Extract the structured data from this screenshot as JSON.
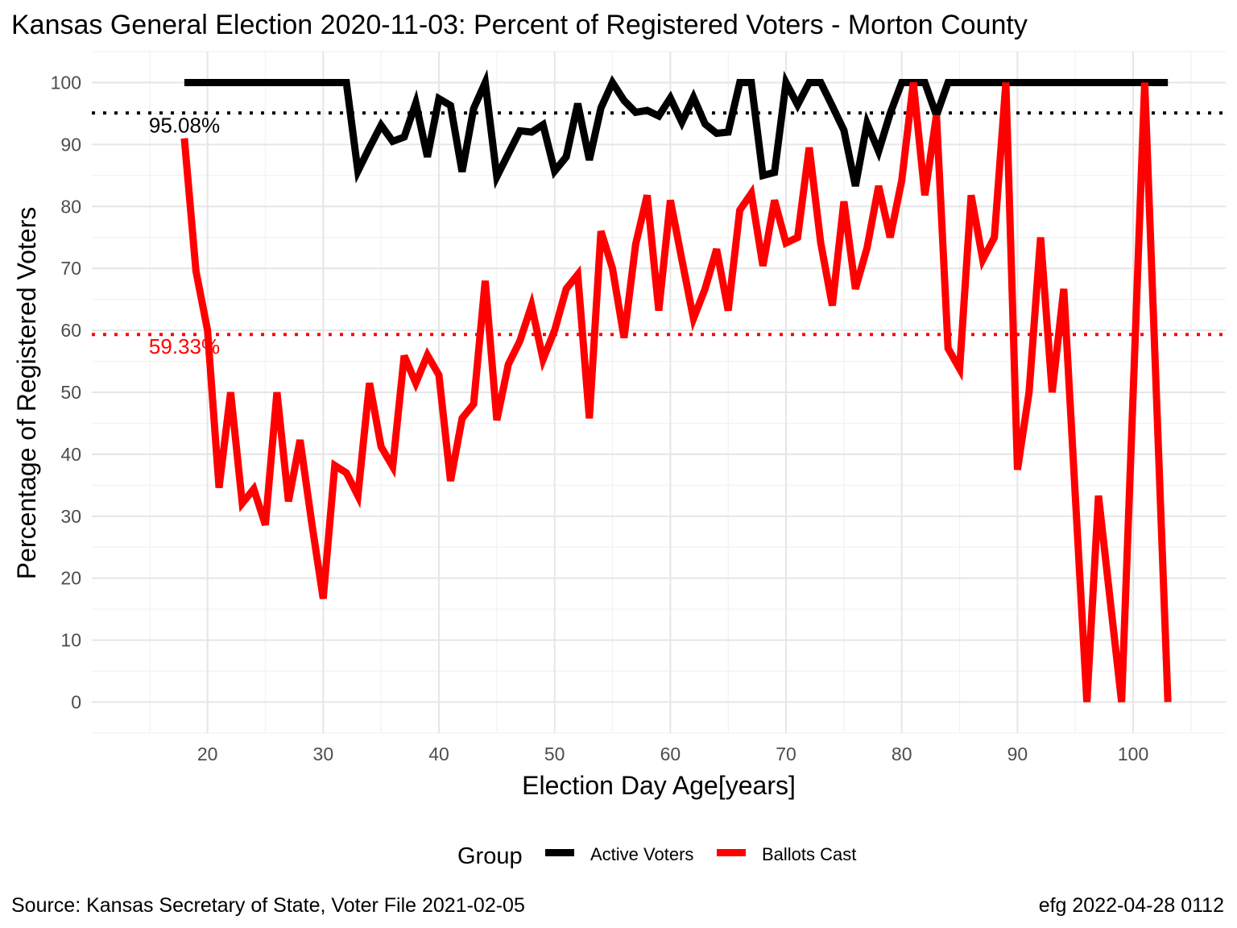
{
  "chart_data": {
    "type": "line",
    "title": "Kansas General Election 2020-11-03:  Percent of Registered Voters - Morton County",
    "xlabel": "Election Day Age[years]",
    "ylabel": "Percentage of Registered Voters",
    "xlim": [
      10,
      108
    ],
    "ylim": [
      -5,
      105
    ],
    "x_ticks": [
      20,
      30,
      40,
      50,
      60,
      70,
      80,
      90,
      100
    ],
    "y_ticks": [
      0,
      10,
      20,
      30,
      40,
      50,
      60,
      70,
      80,
      90,
      100
    ],
    "grid": true,
    "legend": {
      "title": "Group",
      "position": "bottom"
    },
    "series": [
      {
        "name": "Active Voters",
        "color": "#000000",
        "points": [
          [
            18,
            100
          ],
          [
            19,
            100
          ],
          [
            20,
            100
          ],
          [
            21,
            100
          ],
          [
            22,
            100
          ],
          [
            23,
            100
          ],
          [
            24,
            100
          ],
          [
            25,
            100
          ],
          [
            26,
            100
          ],
          [
            27,
            100
          ],
          [
            28,
            100
          ],
          [
            29,
            100
          ],
          [
            30,
            100
          ],
          [
            31,
            100
          ],
          [
            32,
            100
          ],
          [
            33,
            85.7
          ],
          [
            34,
            89.5
          ],
          [
            35,
            93.1
          ],
          [
            36,
            90.5
          ],
          [
            37,
            91.2
          ],
          [
            38,
            96.7
          ],
          [
            39,
            88.0
          ],
          [
            40,
            97.4
          ],
          [
            41,
            96.3
          ],
          [
            42,
            85.6
          ],
          [
            43,
            95.8
          ],
          [
            44,
            100
          ],
          [
            45,
            84.8
          ],
          [
            46,
            88.5
          ],
          [
            47,
            92.2
          ],
          [
            48,
            92.0
          ],
          [
            49,
            93.2
          ],
          [
            50,
            85.7
          ],
          [
            51,
            88.0
          ],
          [
            52,
            96.6
          ],
          [
            53,
            87.5
          ],
          [
            54,
            95.9
          ],
          [
            55,
            100
          ],
          [
            56,
            97.1
          ],
          [
            57,
            95.2
          ],
          [
            58,
            95.5
          ],
          [
            59,
            94.6
          ],
          [
            60,
            97.5
          ],
          [
            61,
            93.6
          ],
          [
            62,
            97.6
          ],
          [
            63,
            93.3
          ],
          [
            64,
            91.8
          ],
          [
            65,
            92.0
          ],
          [
            66,
            100
          ],
          [
            67,
            100
          ],
          [
            68,
            85.0
          ],
          [
            69,
            85.5
          ],
          [
            70,
            100
          ],
          [
            71,
            96.4
          ],
          [
            72,
            100
          ],
          [
            73,
            100
          ],
          [
            74,
            96.2
          ],
          [
            75,
            92.3
          ],
          [
            76,
            83.3
          ],
          [
            77,
            93.4
          ],
          [
            78,
            88.9
          ],
          [
            79,
            95.0
          ],
          [
            80,
            100
          ],
          [
            81,
            100
          ],
          [
            82,
            100
          ],
          [
            83,
            94.7
          ],
          [
            84,
            100
          ],
          [
            85,
            100
          ],
          [
            86,
            100
          ],
          [
            87,
            100
          ],
          [
            88,
            100
          ],
          [
            89,
            100
          ],
          [
            90,
            100
          ],
          [
            91,
            100
          ],
          [
            92,
            100
          ],
          [
            93,
            100
          ],
          [
            94,
            100
          ],
          [
            95,
            100
          ],
          [
            96,
            100
          ],
          [
            97,
            100
          ],
          [
            98,
            100
          ],
          [
            99,
            100
          ],
          [
            100,
            100
          ],
          [
            101,
            100
          ],
          [
            102,
            100
          ],
          [
            103,
            100
          ]
        ]
      },
      {
        "name": "Ballots Cast",
        "color": "#ff0000",
        "points": [
          [
            18,
            91.0
          ],
          [
            19,
            69.6
          ],
          [
            20,
            60.0
          ],
          [
            21,
            34.6
          ],
          [
            22,
            50.0
          ],
          [
            23,
            32.1
          ],
          [
            24,
            34.4
          ],
          [
            25,
            28.6
          ],
          [
            26,
            50.0
          ],
          [
            27,
            32.4
          ],
          [
            28,
            42.3
          ],
          [
            29,
            29.0
          ],
          [
            30,
            16.7
          ],
          [
            31,
            38.2
          ],
          [
            32,
            37.0
          ],
          [
            33,
            33.3
          ],
          [
            34,
            51.5
          ],
          [
            35,
            41.2
          ],
          [
            36,
            38.0
          ],
          [
            37,
            55.9
          ],
          [
            38,
            51.5
          ],
          [
            39,
            56.0
          ],
          [
            40,
            52.8
          ],
          [
            41,
            35.7
          ],
          [
            42,
            45.8
          ],
          [
            43,
            48.1
          ],
          [
            44,
            68.0
          ],
          [
            45,
            45.5
          ],
          [
            46,
            54.5
          ],
          [
            47,
            58.3
          ],
          [
            48,
            64.0
          ],
          [
            49,
            55.3
          ],
          [
            50,
            60.0
          ],
          [
            51,
            66.7
          ],
          [
            52,
            69.0
          ],
          [
            53,
            45.8
          ],
          [
            54,
            76.0
          ],
          [
            55,
            70.0
          ],
          [
            56,
            58.8
          ],
          [
            57,
            73.9
          ],
          [
            58,
            81.8
          ],
          [
            59,
            63.2
          ],
          [
            60,
            81.0
          ],
          [
            61,
            71.4
          ],
          [
            62,
            61.9
          ],
          [
            63,
            66.7
          ],
          [
            64,
            73.1
          ],
          [
            65,
            63.2
          ],
          [
            66,
            79.4
          ],
          [
            67,
            82.1
          ],
          [
            68,
            70.4
          ],
          [
            69,
            81.0
          ],
          [
            70,
            74.1
          ],
          [
            71,
            75.0
          ],
          [
            72,
            89.5
          ],
          [
            73,
            74.1
          ],
          [
            74,
            64.0
          ],
          [
            75,
            80.8
          ],
          [
            76,
            66.7
          ],
          [
            77,
            73.3
          ],
          [
            78,
            83.3
          ],
          [
            79,
            75.0
          ],
          [
            80,
            84.2
          ],
          [
            81,
            100
          ],
          [
            82,
            81.8
          ],
          [
            83,
            94.7
          ],
          [
            84,
            57.1
          ],
          [
            85,
            53.8
          ],
          [
            86,
            81.8
          ],
          [
            87,
            71.4
          ],
          [
            88,
            75.0
          ],
          [
            89,
            100
          ],
          [
            90,
            37.5
          ],
          [
            91,
            50.0
          ],
          [
            92,
            75.0
          ],
          [
            93,
            50.0
          ],
          [
            94,
            66.7
          ],
          [
            95,
            33.3
          ],
          [
            96,
            0
          ],
          [
            97,
            33.3
          ],
          [
            98,
            16.7
          ],
          [
            99,
            0
          ],
          [
            100,
            50.0
          ],
          [
            101,
            100
          ],
          [
            102,
            50.0
          ],
          [
            103,
            0
          ]
        ]
      }
    ],
    "reference_lines": [
      {
        "value": 95.08,
        "label": "95.08%",
        "color": "#000000",
        "style": "dotted"
      },
      {
        "value": 59.33,
        "label": "59.33%",
        "color": "#ff0000",
        "style": "dotted"
      }
    ],
    "caption_left": "Source:  Kansas Secretary of State, Voter File  2021-02-05",
    "caption_right": "efg 2022-04-28 0112"
  }
}
